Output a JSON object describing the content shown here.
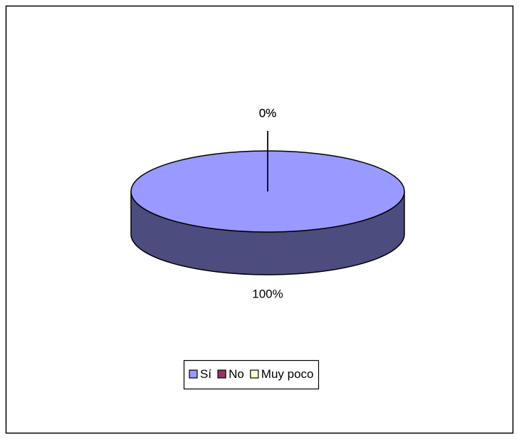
{
  "chart_data": {
    "type": "pie",
    "categories": [
      "Sí",
      "No",
      "Muy poco"
    ],
    "values": [
      100,
      0,
      0
    ],
    "value_labels": [
      "100%",
      "0%",
      "0%"
    ],
    "colors": [
      "#9999ff",
      "#993366",
      "#ffffcc"
    ],
    "legend": "bottom"
  }
}
